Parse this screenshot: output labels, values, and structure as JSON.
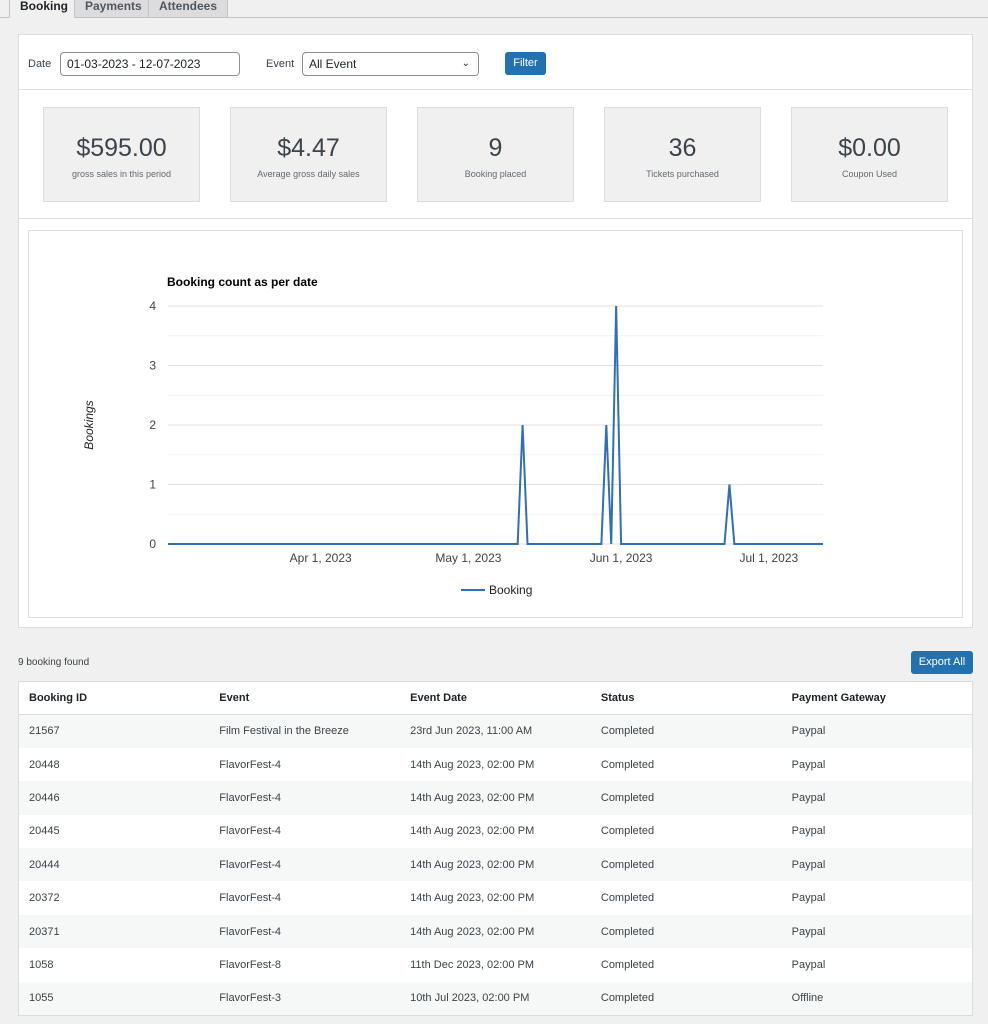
{
  "tabs": [
    "Booking",
    "Payments",
    "Attendees"
  ],
  "filter": {
    "date_label": "Date",
    "date_value": "01-03-2023 - 12-07-2023",
    "event_label": "Event",
    "event_value": "All Event",
    "filter_button": "Filter"
  },
  "stats": [
    {
      "value": "$595.00",
      "label": "gross sales in this period"
    },
    {
      "value": "$4.47",
      "label": "Average gross daily sales"
    },
    {
      "value": "9",
      "label": "Booking placed"
    },
    {
      "value": "36",
      "label": "Tickets purchased"
    },
    {
      "value": "$0.00",
      "label": "Coupon Used"
    }
  ],
  "chart_data": {
    "type": "line",
    "title": "Booking count as per date",
    "ylabel": "Bookings",
    "xlabel": "",
    "xlim": [
      "2023-03-01",
      "2023-07-12"
    ],
    "ylim": [
      0,
      4
    ],
    "yticks": [
      "0",
      "1",
      "2",
      "3",
      "4"
    ],
    "xticks": [
      {
        "date": "2023-04-01",
        "label": "Apr 1, 2023"
      },
      {
        "date": "2023-05-01",
        "label": "May 1, 2023"
      },
      {
        "date": "2023-06-01",
        "label": "Jun 1, 2023"
      },
      {
        "date": "2023-07-01",
        "label": "Jul 1, 2023"
      }
    ],
    "grid": true,
    "legend": "bottom",
    "color": "#3070b8",
    "series": [
      {
        "name": "Booking",
        "daily_default": 0,
        "points": [
          {
            "x": "2023-05-12",
            "y": 2
          },
          {
            "x": "2023-05-29",
            "y": 2
          },
          {
            "x": "2023-05-31",
            "y": 4
          },
          {
            "x": "2023-06-23",
            "y": 1
          }
        ]
      }
    ]
  },
  "list": {
    "count_text": "9 booking found",
    "export_button": "Export All",
    "columns": [
      "Booking ID",
      "Event",
      "Event Date",
      "Status",
      "Payment Gateway"
    ],
    "rows": [
      [
        "21567",
        "Film Festival in the Breeze",
        "23rd Jun 2023, 11:00 AM",
        "Completed",
        "Paypal"
      ],
      [
        "20448",
        "FlavorFest-4",
        "14th Aug 2023, 02:00 PM",
        "Completed",
        "Paypal"
      ],
      [
        "20446",
        "FlavorFest-4",
        "14th Aug 2023, 02:00 PM",
        "Completed",
        "Paypal"
      ],
      [
        "20445",
        "FlavorFest-4",
        "14th Aug 2023, 02:00 PM",
        "Completed",
        "Paypal"
      ],
      [
        "20444",
        "FlavorFest-4",
        "14th Aug 2023, 02:00 PM",
        "Completed",
        "Paypal"
      ],
      [
        "20372",
        "FlavorFest-4",
        "14th Aug 2023, 02:00 PM",
        "Completed",
        "Paypal"
      ],
      [
        "20371",
        "FlavorFest-4",
        "14th Aug 2023, 02:00 PM",
        "Completed",
        "Paypal"
      ],
      [
        "1058",
        "FlavorFest-8",
        "11th Dec 2023, 02:00 PM",
        "Completed",
        "Paypal"
      ],
      [
        "1055",
        "FlavorFest-3",
        "10th Jul 2023, 02:00 PM",
        "Completed",
        "Offline"
      ]
    ]
  }
}
